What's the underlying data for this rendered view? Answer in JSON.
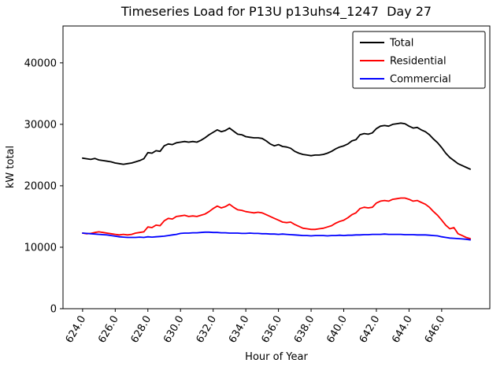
{
  "chart_data": {
    "type": "line",
    "title": "Timeseries Load for P13U p13uhs4_1247  Day 27",
    "xlabel": "Hour of Year",
    "ylabel": "kW total",
    "xlim": [
      622.8,
      648.95
    ],
    "ylim": [
      0,
      46000
    ],
    "grid": false,
    "legend_position": "upper right",
    "xticks": [
      624,
      626,
      628,
      630,
      632,
      634,
      636,
      638,
      640,
      642,
      644,
      646
    ],
    "xtick_labels": [
      "624.0",
      "626.0",
      "628.0",
      "630.0",
      "632.0",
      "634.0",
      "636.0",
      "638.0",
      "640.0",
      "642.0",
      "644.0",
      "646.0"
    ],
    "yticks": [
      0,
      10000,
      20000,
      30000,
      40000
    ],
    "ytick_labels": [
      "0",
      "10000",
      "20000",
      "30000",
      "40000"
    ],
    "x": [
      624.0,
      624.25,
      624.5,
      624.75,
      625.0,
      625.25,
      625.5,
      625.75,
      626.0,
      626.25,
      626.5,
      626.75,
      627.0,
      627.25,
      627.5,
      627.75,
      628.0,
      628.25,
      628.5,
      628.75,
      629.0,
      629.25,
      629.5,
      629.75,
      630.0,
      630.25,
      630.5,
      630.75,
      631.0,
      631.25,
      631.5,
      631.75,
      632.0,
      632.25,
      632.5,
      632.75,
      633.0,
      633.25,
      633.5,
      633.75,
      634.0,
      634.25,
      634.5,
      634.75,
      635.0,
      635.25,
      635.5,
      635.75,
      636.0,
      636.25,
      636.5,
      636.75,
      637.0,
      637.25,
      637.5,
      637.75,
      638.0,
      638.25,
      638.5,
      638.75,
      639.0,
      639.25,
      639.5,
      639.75,
      640.0,
      640.25,
      640.5,
      640.75,
      641.0,
      641.25,
      641.5,
      641.75,
      642.0,
      642.25,
      642.5,
      642.75,
      643.0,
      643.25,
      643.5,
      643.75,
      644.0,
      644.25,
      644.5,
      644.75,
      645.0,
      645.25,
      645.5,
      645.75,
      646.0,
      646.25,
      646.5,
      646.75,
      647.0,
      647.25,
      647.5,
      647.75
    ],
    "series": [
      {
        "name": "Total",
        "color": "#000000",
        "values": [
          24500,
          24400,
          24300,
          24450,
          24200,
          24100,
          24000,
          23900,
          23700,
          23600,
          23500,
          23600,
          23700,
          23900,
          24100,
          24400,
          25400,
          25300,
          25700,
          25600,
          26500,
          26800,
          26700,
          27000,
          27100,
          27200,
          27100,
          27200,
          27100,
          27400,
          27800,
          28300,
          28700,
          29100,
          28800,
          29000,
          29400,
          28900,
          28400,
          28300,
          28000,
          27900,
          27800,
          27800,
          27700,
          27300,
          26800,
          26500,
          26700,
          26400,
          26300,
          26100,
          25600,
          25300,
          25100,
          25000,
          24900,
          25000,
          25000,
          25100,
          25300,
          25600,
          26000,
          26300,
          26500,
          26800,
          27300,
          27500,
          28300,
          28500,
          28400,
          28600,
          29300,
          29700,
          29800,
          29700,
          30000,
          30100,
          30200,
          30100,
          29700,
          29400,
          29500,
          29100,
          28800,
          28300,
          27600,
          27000,
          26200,
          25300,
          24600,
          24100,
          23600,
          23300,
          23000,
          22700
        ]
      },
      {
        "name": "Residential",
        "color": "#ff0000",
        "values": [
          12300,
          12200,
          12250,
          12400,
          12500,
          12400,
          12300,
          12200,
          12100,
          12000,
          12100,
          12000,
          12100,
          12300,
          12400,
          12500,
          13300,
          13200,
          13600,
          13500,
          14300,
          14700,
          14600,
          15000,
          15100,
          15200,
          15000,
          15100,
          15000,
          15200,
          15400,
          15800,
          16300,
          16700,
          16400,
          16600,
          17000,
          16500,
          16100,
          16000,
          15800,
          15700,
          15600,
          15700,
          15600,
          15300,
          15000,
          14700,
          14400,
          14100,
          14000,
          14100,
          13700,
          13400,
          13100,
          13000,
          12900,
          12900,
          13000,
          13100,
          13300,
          13500,
          13900,
          14200,
          14400,
          14800,
          15300,
          15600,
          16300,
          16500,
          16400,
          16500,
          17200,
          17500,
          17600,
          17500,
          17800,
          17900,
          18000,
          18000,
          17800,
          17500,
          17600,
          17300,
          17000,
          16500,
          15800,
          15200,
          14400,
          13600,
          13000,
          13200,
          12200,
          11900,
          11600,
          11400
        ]
      },
      {
        "name": "Commercial",
        "color": "#0000ff",
        "values": [
          12300,
          12250,
          12200,
          12150,
          12100,
          12050,
          12000,
          11900,
          11800,
          11700,
          11650,
          11600,
          11600,
          11600,
          11650,
          11600,
          11700,
          11650,
          11700,
          11750,
          11800,
          11900,
          12000,
          12100,
          12250,
          12300,
          12300,
          12350,
          12350,
          12400,
          12450,
          12450,
          12400,
          12400,
          12350,
          12350,
          12300,
          12300,
          12300,
          12250,
          12250,
          12300,
          12250,
          12250,
          12200,
          12200,
          12150,
          12150,
          12100,
          12150,
          12100,
          12050,
          12000,
          11950,
          11900,
          11900,
          11850,
          11900,
          11900,
          11900,
          11850,
          11900,
          11900,
          11950,
          11900,
          11950,
          11950,
          12000,
          12000,
          12050,
          12050,
          12100,
          12100,
          12100,
          12150,
          12100,
          12100,
          12100,
          12100,
          12050,
          12050,
          12050,
          12000,
          12000,
          12000,
          11950,
          11900,
          11850,
          11700,
          11600,
          11500,
          11450,
          11400,
          11350,
          11300,
          11200
        ]
      }
    ]
  }
}
